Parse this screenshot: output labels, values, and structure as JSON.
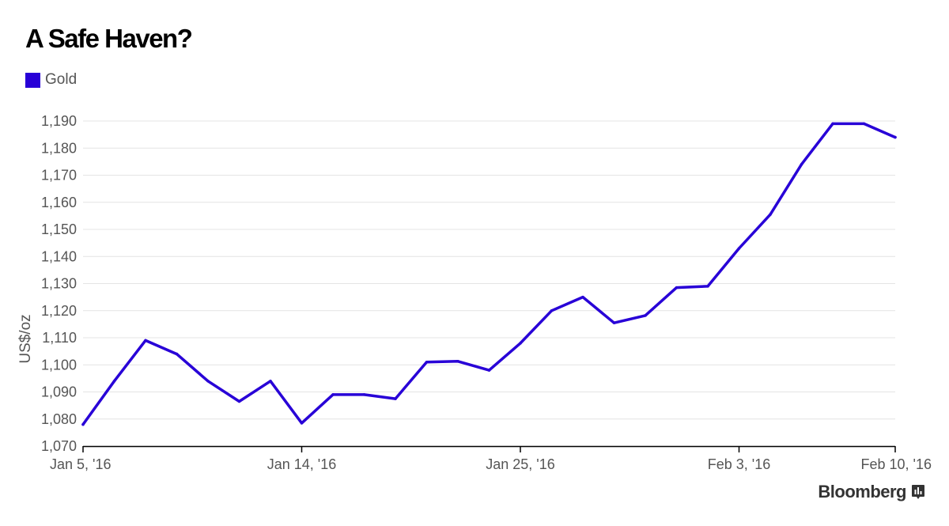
{
  "chart_data": {
    "type": "line",
    "title": "A Safe Haven?",
    "ylabel": "US$/oz",
    "xlabel": "",
    "ylim": [
      1070,
      1190
    ],
    "yticks": [
      1070,
      1080,
      1090,
      1100,
      1110,
      1120,
      1130,
      1140,
      1150,
      1160,
      1170,
      1180,
      1190
    ],
    "ytick_labels": [
      "1,070",
      "1,080",
      "1,090",
      "1,100",
      "1,110",
      "1,120",
      "1,130",
      "1,140",
      "1,150",
      "1,160",
      "1,170",
      "1,180",
      "1,190"
    ],
    "xticks": [
      {
        "label": "Jan 5, '16",
        "index": 0
      },
      {
        "label": "Jan 14, '16",
        "index": 7
      },
      {
        "label": "Jan 25, '16",
        "index": 14
      },
      {
        "label": "Feb 3, '16",
        "index": 21
      },
      {
        "label": "Feb 10, '16",
        "index": 26
      }
    ],
    "grid": true,
    "legend_position": "top-left",
    "series": [
      {
        "name": "Gold",
        "color": "#2800d7",
        "x": [
          "2016-01-05",
          "2016-01-06",
          "2016-01-07",
          "2016-01-08",
          "2016-01-11",
          "2016-01-12",
          "2016-01-13",
          "2016-01-14",
          "2016-01-15",
          "2016-01-18",
          "2016-01-19",
          "2016-01-20",
          "2016-01-21",
          "2016-01-22",
          "2016-01-25",
          "2016-01-26",
          "2016-01-27",
          "2016-01-28",
          "2016-01-29",
          "2016-02-01",
          "2016-02-02",
          "2016-02-03",
          "2016-02-04",
          "2016-02-05",
          "2016-02-08",
          "2016-02-09",
          "2016-02-10"
        ],
        "values": [
          1078,
          1094,
          1109,
          1104,
          1094,
          1086.5,
          1094,
          1078.5,
          1089,
          1089,
          1087.5,
          1101,
          1101.3,
          1098,
          1108,
          1120,
          1125,
          1115.5,
          1118.2,
          1128.5,
          1129,
          1143,
          1155.5,
          1174,
          1189,
          1189,
          1184
        ]
      }
    ]
  },
  "source": "Bloomberg",
  "icons": {
    "source_icon": "bar-chart-icon"
  }
}
